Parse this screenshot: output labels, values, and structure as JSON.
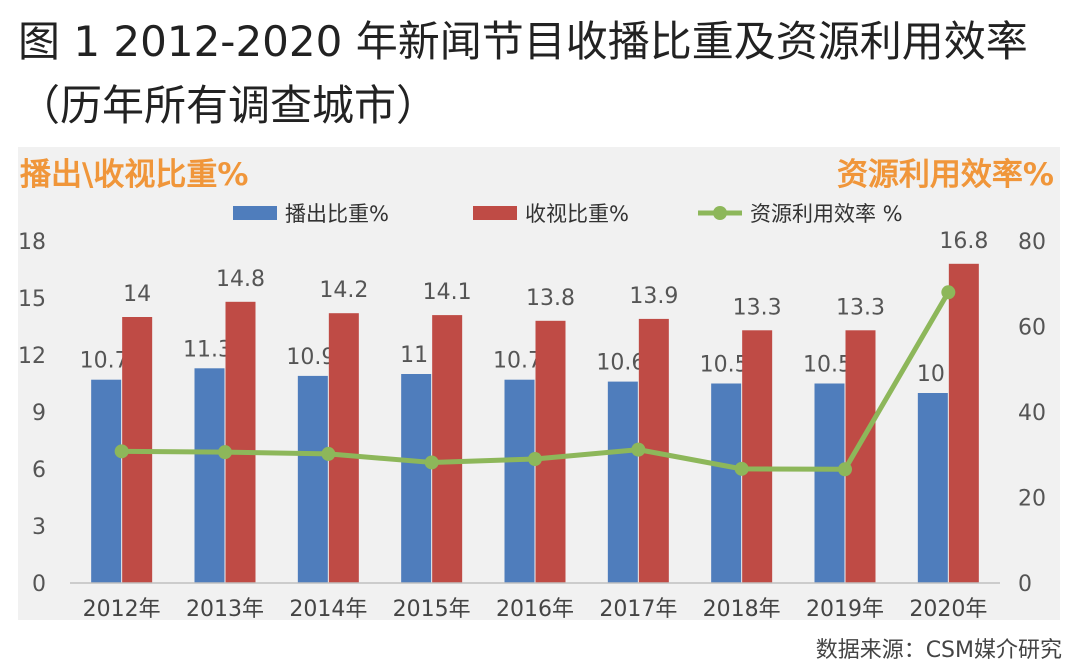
{
  "figure": {
    "title": "图 1 2012-2020 年新闻节目收播比重及资源利用效率（历年所有调查城市）",
    "source": "数据来源：CSM媒介研究"
  },
  "chart_data": {
    "type": "bar",
    "categories": [
      "2012年",
      "2013年",
      "2014年",
      "2015年",
      "2016年",
      "2017年",
      "2018年",
      "2019年",
      "2020年"
    ],
    "series": [
      {
        "name": "播出比重%",
        "type": "bar",
        "axis": "left",
        "color": "#4f7dbc",
        "values": [
          10.7,
          11.3,
          10.9,
          11,
          10.7,
          10.6,
          10.5,
          10.5,
          10
        ]
      },
      {
        "name": "收视比重%",
        "type": "bar",
        "axis": "left",
        "color": "#bf4b45",
        "values": [
          14,
          14.8,
          14.2,
          14.1,
          13.8,
          13.9,
          13.3,
          13.3,
          16.8
        ]
      },
      {
        "name": "资源利用效率 %",
        "type": "line",
        "axis": "right",
        "color": "#8db75a",
        "values": [
          30.8,
          30.6,
          30.2,
          28.2,
          29.0,
          31.2,
          26.7,
          26.6,
          68.0
        ]
      }
    ],
    "ylabel_left": "播出\\收视比重%",
    "ylabel_right": "资源利用效率%",
    "ylim_left": [
      0,
      18
    ],
    "yticks_left": [
      0,
      3,
      6,
      9,
      12,
      15,
      18
    ],
    "ylim_right": [
      0,
      80
    ],
    "yticks_right": [
      0,
      20,
      40,
      60,
      80
    ],
    "legend": "top",
    "grid": false,
    "data_labels": true
  }
}
